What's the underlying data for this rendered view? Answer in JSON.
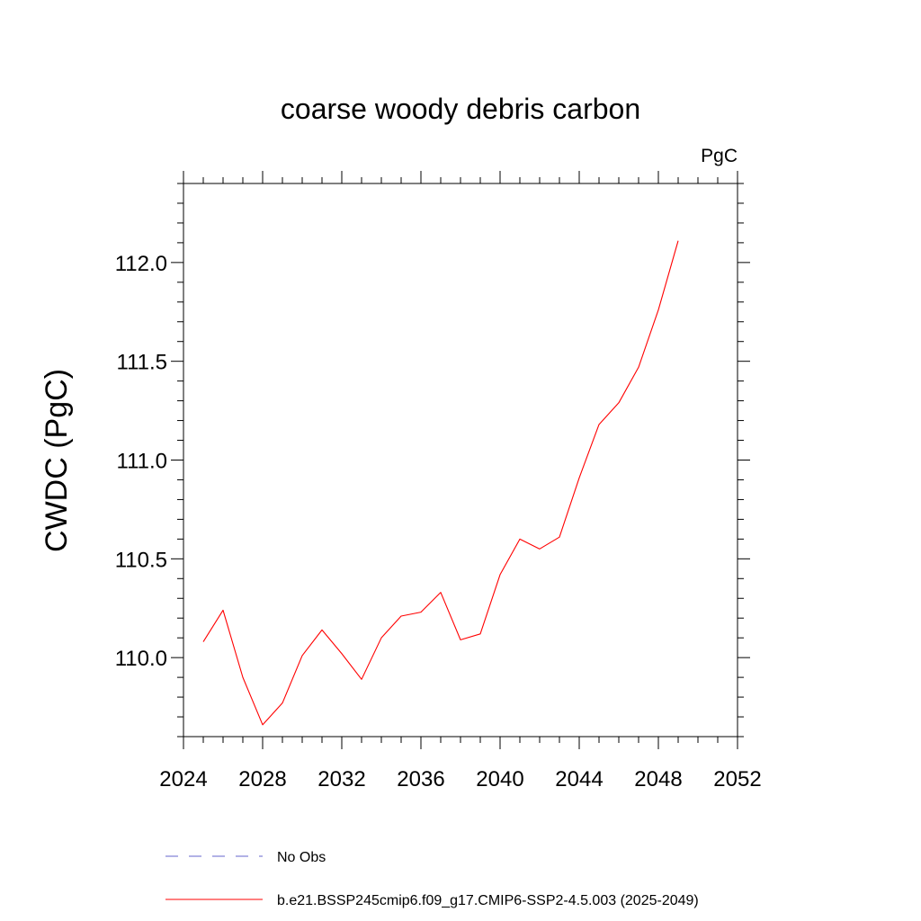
{
  "chart_data": {
    "type": "line",
    "title": "coarse woody debris carbon",
    "units": "PgC",
    "xlabel": "",
    "ylabel": "CWDC  (PgC)",
    "xlim": [
      2024,
      2052
    ],
    "ylim": [
      109.6,
      112.4
    ],
    "x_ticks": [
      2024,
      2028,
      2032,
      2036,
      2040,
      2044,
      2048,
      2052
    ],
    "y_ticks": [
      110.0,
      110.5,
      111.0,
      111.5,
      112.0
    ],
    "x_tick_labels": [
      "2024",
      "2028",
      "2032",
      "2036",
      "2040",
      "2044",
      "2048",
      "2052"
    ],
    "y_tick_labels": [
      "110.0",
      "110.5",
      "111.0",
      "111.5",
      "112.0"
    ],
    "grid": false,
    "legend_position": "bottom",
    "x": [
      2025,
      2026,
      2027,
      2028,
      2029,
      2030,
      2031,
      2032,
      2033,
      2034,
      2035,
      2036,
      2037,
      2038,
      2039,
      2040,
      2041,
      2042,
      2043,
      2044,
      2045,
      2046,
      2047,
      2048,
      2049
    ],
    "series": [
      {
        "name": "b.e21.BSSP245cmip6.f09_g17.CMIP6-SSP2-4.5.003 (2025-2049)",
        "color": "#ff0000",
        "style": "solid",
        "values": [
          110.08,
          110.24,
          109.9,
          109.66,
          109.77,
          110.01,
          110.14,
          110.02,
          109.89,
          110.1,
          110.21,
          110.23,
          110.33,
          110.09,
          110.12,
          110.42,
          110.6,
          110.55,
          110.61,
          110.91,
          111.18,
          111.29,
          111.47,
          111.76,
          112.11
        ]
      }
    ],
    "legend": [
      {
        "label": "No Obs",
        "color": "#6666cc",
        "style": "dashed"
      },
      {
        "label": "b.e21.BSSP245cmip6.f09_g17.CMIP6-SSP2-4.5.003 (2025-2049)",
        "color": "#ff0000",
        "style": "solid"
      }
    ]
  }
}
